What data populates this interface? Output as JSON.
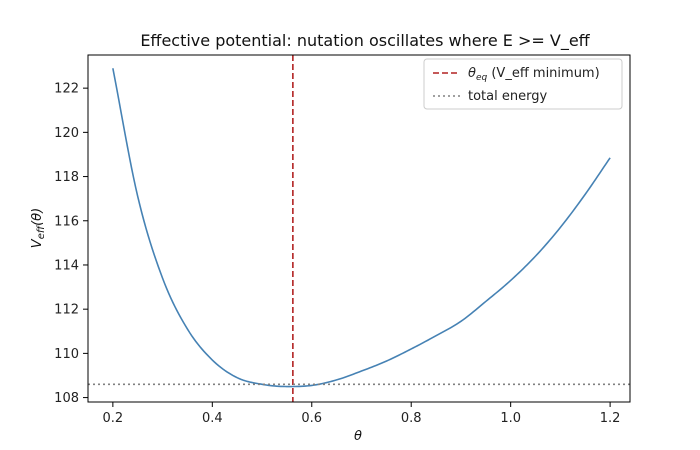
{
  "chart_data": {
    "type": "line",
    "title": "Effective potential: nutation oscillates where E >= V_eff",
    "xlabel": "θ",
    "ylabel_main": "V",
    "ylabel_sub": "eff",
    "ylabel_tail": "(θ)",
    "xlim": [
      0.15,
      1.24
    ],
    "ylim": [
      107.8,
      123.5
    ],
    "xticks": [
      0.2,
      0.4,
      0.6,
      0.8,
      1.0,
      1.2
    ],
    "xtick_labels": [
      "0.2",
      "0.4",
      "0.6",
      "0.8",
      "1.0",
      "1.2"
    ],
    "yticks": [
      108,
      110,
      112,
      114,
      116,
      118,
      120,
      122
    ],
    "ytick_labels": [
      "108",
      "110",
      "112",
      "114",
      "116",
      "118",
      "120",
      "122"
    ],
    "grid": false,
    "legend_position": "top-right",
    "series": [
      {
        "name": "V_eff",
        "color": "#4682b4",
        "x": [
          0.2,
          0.25,
          0.3,
          0.35,
          0.4,
          0.45,
          0.5,
          0.55,
          0.6,
          0.65,
          0.7,
          0.75,
          0.8,
          0.85,
          0.9,
          0.95,
          1.0,
          1.05,
          1.1,
          1.15,
          1.2
        ],
        "y": [
          122.9,
          117.1,
          113.4,
          111.1,
          109.7,
          108.9,
          108.6,
          108.5,
          108.55,
          108.8,
          109.2,
          109.65,
          110.2,
          110.8,
          111.45,
          112.35,
          113.3,
          114.4,
          115.7,
          117.2,
          118.85
        ]
      }
    ],
    "annotations": [
      {
        "kind": "vline",
        "x": 0.562,
        "color": "#b22222",
        "legend_main": "θ",
        "legend_sub": "eq",
        "legend_tail": " (V_eff minimum)"
      },
      {
        "kind": "hline",
        "y": 108.6,
        "color": "#808080",
        "legend_label": "total energy"
      }
    ]
  }
}
